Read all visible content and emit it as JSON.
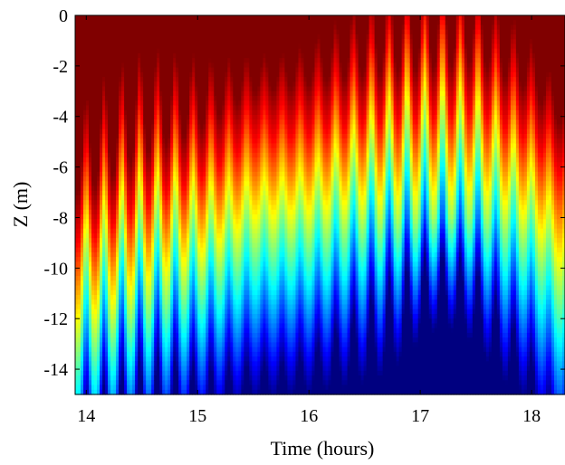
{
  "chart_data": {
    "type": "heatmap",
    "title": "",
    "xlabel": "Time (hours)",
    "ylabel": "Z (m)",
    "xlim": [
      13.9,
      18.3
    ],
    "ylim": [
      -15,
      0
    ],
    "x_ticks": [
      14,
      15,
      16,
      17,
      18
    ],
    "x_tick_labels": [
      "14",
      "15",
      "16",
      "17",
      "18"
    ],
    "y_ticks": [
      0,
      -2,
      -4,
      -6,
      -8,
      -10,
      -12,
      -14
    ],
    "y_tick_labels": [
      "0",
      "-2",
      "-4",
      "-6",
      "-8",
      "-10",
      "-12",
      "-14"
    ],
    "colormap": "jet",
    "colorbar": false,
    "grid": false,
    "colors": {
      "high": "#ff2a00",
      "mid_high": "#ffd400",
      "mid": "#40ffc0",
      "mid_low": "#00a0ff",
      "low": "#0020c0"
    },
    "field_description_points": {
      "oscillation_period_hours": 0.16,
      "interface_depth_profile": [
        {
          "time": 14.0,
          "depth": -7.5
        },
        {
          "time": 14.5,
          "depth": -6.0
        },
        {
          "time": 15.0,
          "depth": -5.0
        },
        {
          "time": 15.5,
          "depth": -3.5
        },
        {
          "time": 16.0,
          "depth": -3.2
        },
        {
          "time": 16.5,
          "depth": -2.8
        },
        {
          "time": 17.0,
          "depth": -2.6
        },
        {
          "time": 17.5,
          "depth": -2.3
        },
        {
          "time": 18.0,
          "depth": -3.5
        },
        {
          "time": 18.3,
          "depth": -5.0
        }
      ]
    }
  }
}
